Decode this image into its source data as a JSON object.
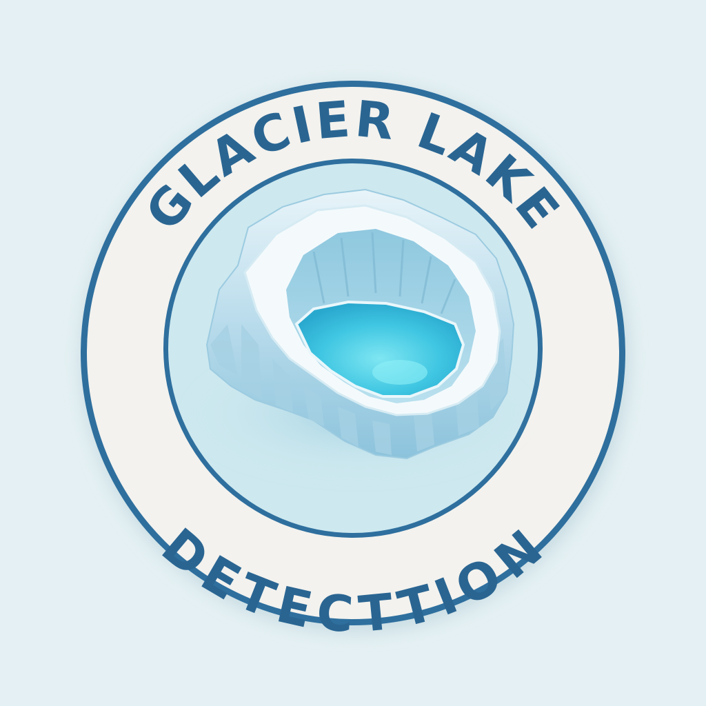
{
  "badge": {
    "top_text": "GLACIER LAKE",
    "bottom_text": "DETECTTION"
  },
  "icon": {
    "name": "glacier-lake-icon"
  },
  "colors": {
    "background": "#e4f0f3",
    "ring": "#2e6f9e",
    "band": "#f3f2ee",
    "inner_circle": "#cde8ef",
    "text": "#2a6592",
    "ice_light": "#f4fafc",
    "ice_mid": "#b9ddeb",
    "ice_dark": "#7fbcd6",
    "water": "#3fc6e2"
  }
}
